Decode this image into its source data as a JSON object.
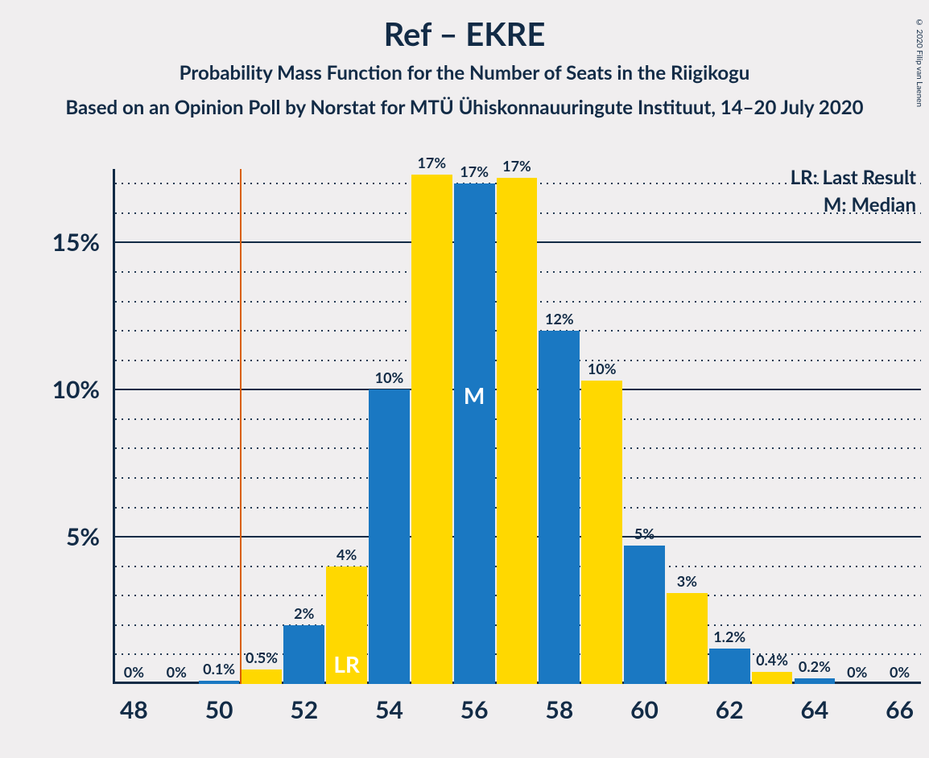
{
  "copyright": "© 2020 Filip van Laenen",
  "title": "Ref – EKRE",
  "subtitle": "Probability Mass Function for the Number of Seats in the Riigikogu",
  "subsubtitle": "Based on an Opinion Poll by Norstat for MTÜ Ühiskonnauuringute Instituut, 14–20 July 2020",
  "legend": {
    "lr": "LR: Last Result",
    "m": "M: Median"
  },
  "chart": {
    "type": "bar",
    "x_min": 47.5,
    "x_max": 66.5,
    "y_min": 0,
    "y_max": 17.5,
    "y_major_ticks": [
      5,
      10,
      15
    ],
    "y_minor_step": 1,
    "x_ticks": [
      48,
      50,
      52,
      54,
      56,
      58,
      60,
      62,
      64,
      66
    ],
    "x_tick_fontsize": 30,
    "y_tick_fontsize": 30,
    "bar_label_fontsize": 18,
    "legend_fontsize": 24,
    "marker_fontsize": 28,
    "background_color": "#f0eeef",
    "axis_color": "#122b46",
    "grid_major_color": "#122b46",
    "grid_minor_color": "#122b46",
    "lr_line_color": "#d95f02",
    "lr_line_x": 50.5,
    "bar_width": 0.96,
    "colors": {
      "blue": "#1a78c2",
      "yellow": "#ffd800"
    },
    "bars": [
      {
        "x": 48,
        "value": 0,
        "label": "0%",
        "color": "blue"
      },
      {
        "x": 49,
        "value": 0,
        "label": "0%",
        "color": "yellow"
      },
      {
        "x": 50,
        "value": 0.1,
        "label": "0.1%",
        "color": "blue"
      },
      {
        "x": 51,
        "value": 0.5,
        "label": "0.5%",
        "color": "yellow"
      },
      {
        "x": 52,
        "value": 2,
        "label": "2%",
        "color": "blue"
      },
      {
        "x": 53,
        "value": 4,
        "label": "4%",
        "color": "yellow",
        "marker": "LR"
      },
      {
        "x": 54,
        "value": 10,
        "label": "10%",
        "color": "blue"
      },
      {
        "x": 55,
        "value": 17.3,
        "label": "17%",
        "color": "yellow"
      },
      {
        "x": 56,
        "value": 17.0,
        "label": "17%",
        "color": "blue",
        "marker": "M"
      },
      {
        "x": 57,
        "value": 17.2,
        "label": "17%",
        "color": "yellow"
      },
      {
        "x": 58,
        "value": 12,
        "label": "12%",
        "color": "blue"
      },
      {
        "x": 59,
        "value": 10.3,
        "label": "10%",
        "color": "yellow"
      },
      {
        "x": 60,
        "value": 4.7,
        "label": "5%",
        "color": "blue"
      },
      {
        "x": 61,
        "value": 3.1,
        "label": "3%",
        "color": "yellow"
      },
      {
        "x": 62,
        "value": 1.2,
        "label": "1.2%",
        "color": "blue"
      },
      {
        "x": 63,
        "value": 0.4,
        "label": "0.4%",
        "color": "yellow"
      },
      {
        "x": 64,
        "value": 0.2,
        "label": "0.2%",
        "color": "blue"
      },
      {
        "x": 65,
        "value": 0,
        "label": "0%",
        "color": "yellow"
      },
      {
        "x": 66,
        "value": 0,
        "label": "0%",
        "color": "blue"
      }
    ]
  }
}
